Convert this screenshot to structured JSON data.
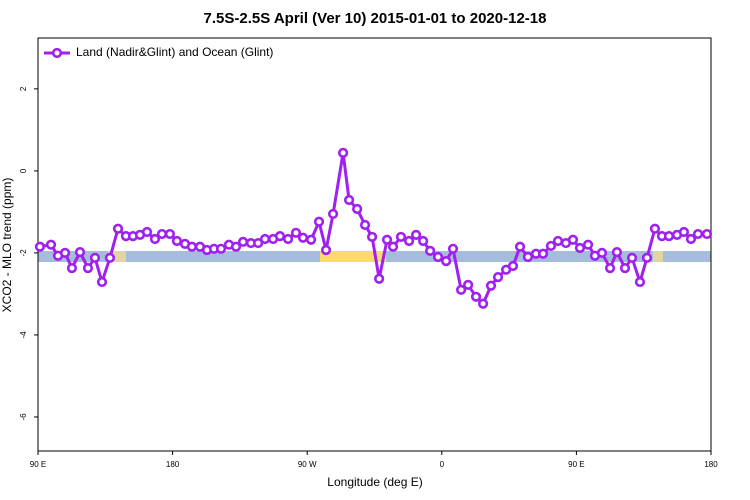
{
  "chart_data": {
    "type": "line",
    "title": "7.5S-2.5S April (Ver 10)   2015-01-01 to 2020-12-18",
    "x_label": "Longitude (deg E)",
    "y_label": "XCO2 - MLO trend (ppm)",
    "xlim": [
      90,
      540
    ],
    "ylim": [
      -6.83,
      3.24
    ],
    "xticks": [
      {
        "value": 90,
        "label": "90 E"
      },
      180,
      {
        "value": 270,
        "label": "90 W"
      },
      {
        "value": 360,
        "label": "0"
      },
      {
        "value": 450,
        "label": "90 E"
      },
      {
        "value": 540,
        "label": "180"
      }
    ],
    "yticks": [
      -6,
      -4,
      -2,
      0,
      2
    ],
    "legend": "topleft",
    "series": [
      {
        "name": "Land (Nadir&Glint) and Ocean (Glint)",
        "color": "#a020f0",
        "x": [
          91.3,
          98.7,
          103.4,
          108.1,
          112.7,
          118.1,
          123.4,
          128.1,
          132.8,
          138.1,
          143.5,
          148.8,
          153.5,
          158.2,
          162.9,
          168.2,
          172.9,
          178.2,
          182.9,
          188.3,
          192.9,
          198.3,
          203.0,
          207.7,
          212.4,
          217.7,
          222.4,
          227.1,
          232.4,
          237.2,
          241.8,
          247.2,
          251.8,
          257.2,
          262.5,
          267.2,
          272.6,
          277.9,
          282.6,
          287.3,
          294.0,
          298.0,
          303.4,
          308.7,
          313.4,
          318.1,
          323.4,
          327.4,
          332.7,
          338.1,
          342.8,
          347.5,
          352.2,
          357.5,
          362.9,
          367.5,
          372.9,
          377.6,
          382.9,
          387.6,
          392.9,
          397.6,
          403.0,
          407.6,
          412.3,
          417.6,
          423.0,
          427.7,
          433.0,
          437.7,
          443.0,
          447.7,
          452.4,
          457.8,
          462.4,
          467.1,
          472.5,
          477.1,
          482.5,
          487.2,
          492.5,
          497.2,
          502.5,
          507.2,
          511.9,
          517.3,
          521.9,
          526.6,
          531.3,
          537.3
        ],
        "values": [
          -1.85,
          -1.8,
          -2.07,
          -2.0,
          -2.37,
          -1.98,
          -2.37,
          -2.12,
          -2.71,
          -2.12,
          -1.41,
          -1.59,
          -1.59,
          -1.56,
          -1.49,
          -1.66,
          -1.54,
          -1.54,
          -1.71,
          -1.78,
          -1.85,
          -1.85,
          -1.93,
          -1.9,
          -1.9,
          -1.8,
          -1.85,
          -1.73,
          -1.76,
          -1.76,
          -1.66,
          -1.66,
          -1.59,
          -1.66,
          -1.51,
          -1.63,
          -1.68,
          -1.24,
          -1.93,
          -1.05,
          0.44,
          -0.71,
          -0.93,
          -1.32,
          -1.61,
          -2.63,
          -1.68,
          -1.85,
          -1.61,
          -1.71,
          -1.56,
          -1.71,
          -1.95,
          -2.1,
          -2.2,
          -1.9,
          -2.9,
          -2.78,
          -3.07,
          -3.24,
          -2.8,
          -2.59,
          -2.41,
          -2.32,
          -1.85,
          -2.1,
          -2.02,
          -2.02,
          -1.83,
          -1.71,
          -1.76,
          -1.68,
          -1.88,
          -1.8,
          -2.07,
          -2.0,
          -2.37,
          -1.98,
          -2.37,
          -2.12,
          -2.71,
          -2.12,
          -1.41,
          -1.59,
          -1.59,
          -1.56,
          -1.49,
          -1.66,
          -1.54,
          -1.54
        ]
      }
    ]
  }
}
